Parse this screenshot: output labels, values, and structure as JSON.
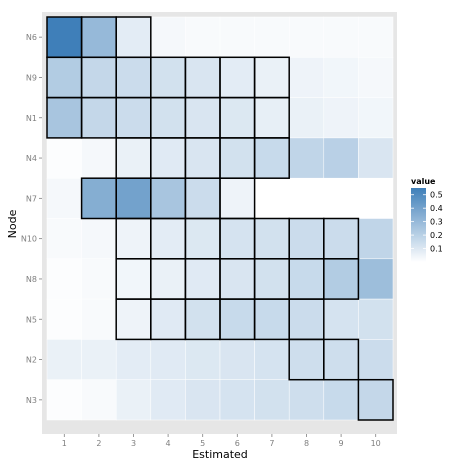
{
  "chart_data": {
    "type": "heatmap",
    "xlabel": "Estimated",
    "ylabel": "Node",
    "x_categories": [
      "1",
      "2",
      "3",
      "4",
      "5",
      "6",
      "7",
      "8",
      "9",
      "10"
    ],
    "y_categories": [
      "N6",
      "N9",
      "N1",
      "N4",
      "N7",
      "N10",
      "N8",
      "N5",
      "N2",
      "N3"
    ],
    "values": [
      [
        0.55,
        0.3,
        0.08,
        0.03,
        0.02,
        0.02,
        0.02,
        0.02,
        0.02,
        0.02
      ],
      [
        0.22,
        0.17,
        0.15,
        0.13,
        0.11,
        0.08,
        0.06,
        0.05,
        0.04,
        0.03
      ],
      [
        0.25,
        0.17,
        0.15,
        0.13,
        0.11,
        0.1,
        0.07,
        0.06,
        0.05,
        0.04
      ],
      [
        0.01,
        0.03,
        0.06,
        0.09,
        0.11,
        0.13,
        0.16,
        0.18,
        0.2,
        0.11
      ],
      [
        0.03,
        0.35,
        0.4,
        0.25,
        0.15,
        0.05,
        0.0,
        0.0,
        0.0,
        0.0
      ],
      [
        0.02,
        0.03,
        0.05,
        0.08,
        0.1,
        0.12,
        0.13,
        0.15,
        0.15,
        0.18
      ],
      [
        0.01,
        0.02,
        0.04,
        0.06,
        0.09,
        0.11,
        0.13,
        0.16,
        0.22,
        0.28
      ],
      [
        0.01,
        0.02,
        0.05,
        0.09,
        0.13,
        0.16,
        0.16,
        0.15,
        0.12,
        0.13
      ],
      [
        0.06,
        0.06,
        0.08,
        0.09,
        0.1,
        0.11,
        0.12,
        0.14,
        0.14,
        0.15
      ],
      [
        0.01,
        0.02,
        0.06,
        0.09,
        0.11,
        0.12,
        0.13,
        0.14,
        0.16,
        0.17
      ]
    ],
    "outlined_cells": {
      "N6": [
        1,
        3
      ],
      "N9": [
        1,
        7
      ],
      "N1": [
        1,
        7
      ],
      "N4": [
        3,
        7
      ],
      "N7": [
        2,
        6
      ],
      "N10": [
        3,
        9
      ],
      "N8": [
        3,
        9
      ],
      "N5": [
        3,
        8
      ],
      "N2": [
        8,
        9
      ],
      "N3": [
        10,
        10
      ]
    },
    "legend": {
      "title": "value",
      "breaks": [
        0.1,
        0.2,
        0.3,
        0.4,
        0.5
      ],
      "labels": [
        "0.1",
        "0.2",
        "0.3",
        "0.4",
        "0.5"
      ]
    },
    "color_scale": {
      "low": "#ffffff",
      "high": "#3f7fb9",
      "min": 0.0,
      "max": 0.55
    },
    "panel_background": "#e6e6e6",
    "grid": true,
    "legend_position": "right"
  }
}
